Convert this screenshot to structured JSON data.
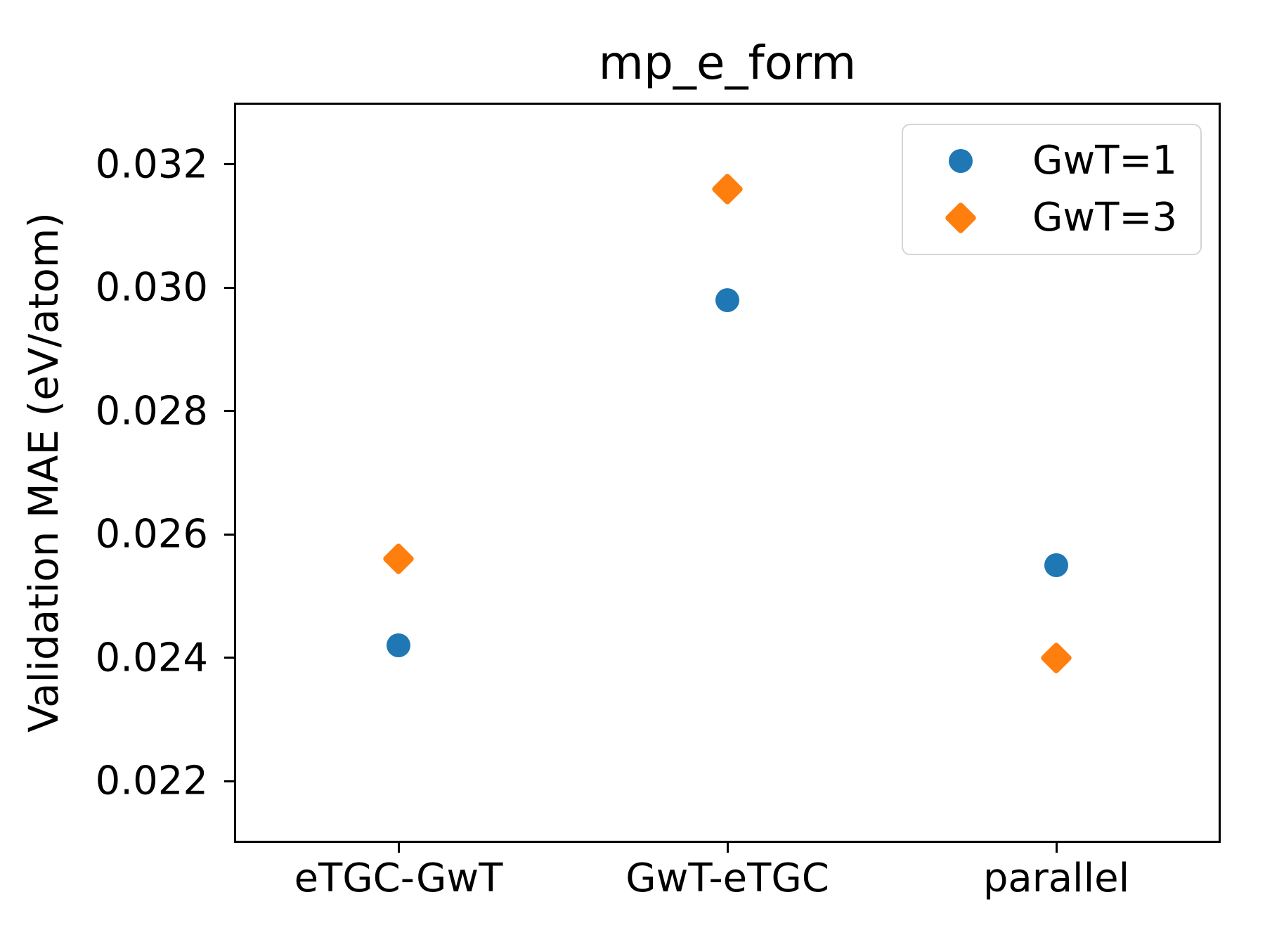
{
  "chart_data": {
    "type": "scatter",
    "title": "mp_e_form",
    "ylabel": "Validation MAE (eV/atom)",
    "xlabel": "",
    "categories": [
      "eTGC-GwT",
      "GwT-eTGC",
      "parallel"
    ],
    "series": [
      {
        "name": "GwT=1",
        "marker": "circle",
        "color": "#1f77b4",
        "values": [
          0.0242,
          0.0298,
          0.0255
        ]
      },
      {
        "name": "GwT=3",
        "marker": "diamond",
        "color": "#ff7f0e",
        "values": [
          0.0256,
          0.0316,
          0.024
        ]
      }
    ],
    "ylim": [
      0.021,
      0.033
    ],
    "yticks": [
      "0.022",
      "0.024",
      "0.026",
      "0.028",
      "0.030",
      "0.032"
    ],
    "grid": false,
    "legend_position": "upper right"
  }
}
